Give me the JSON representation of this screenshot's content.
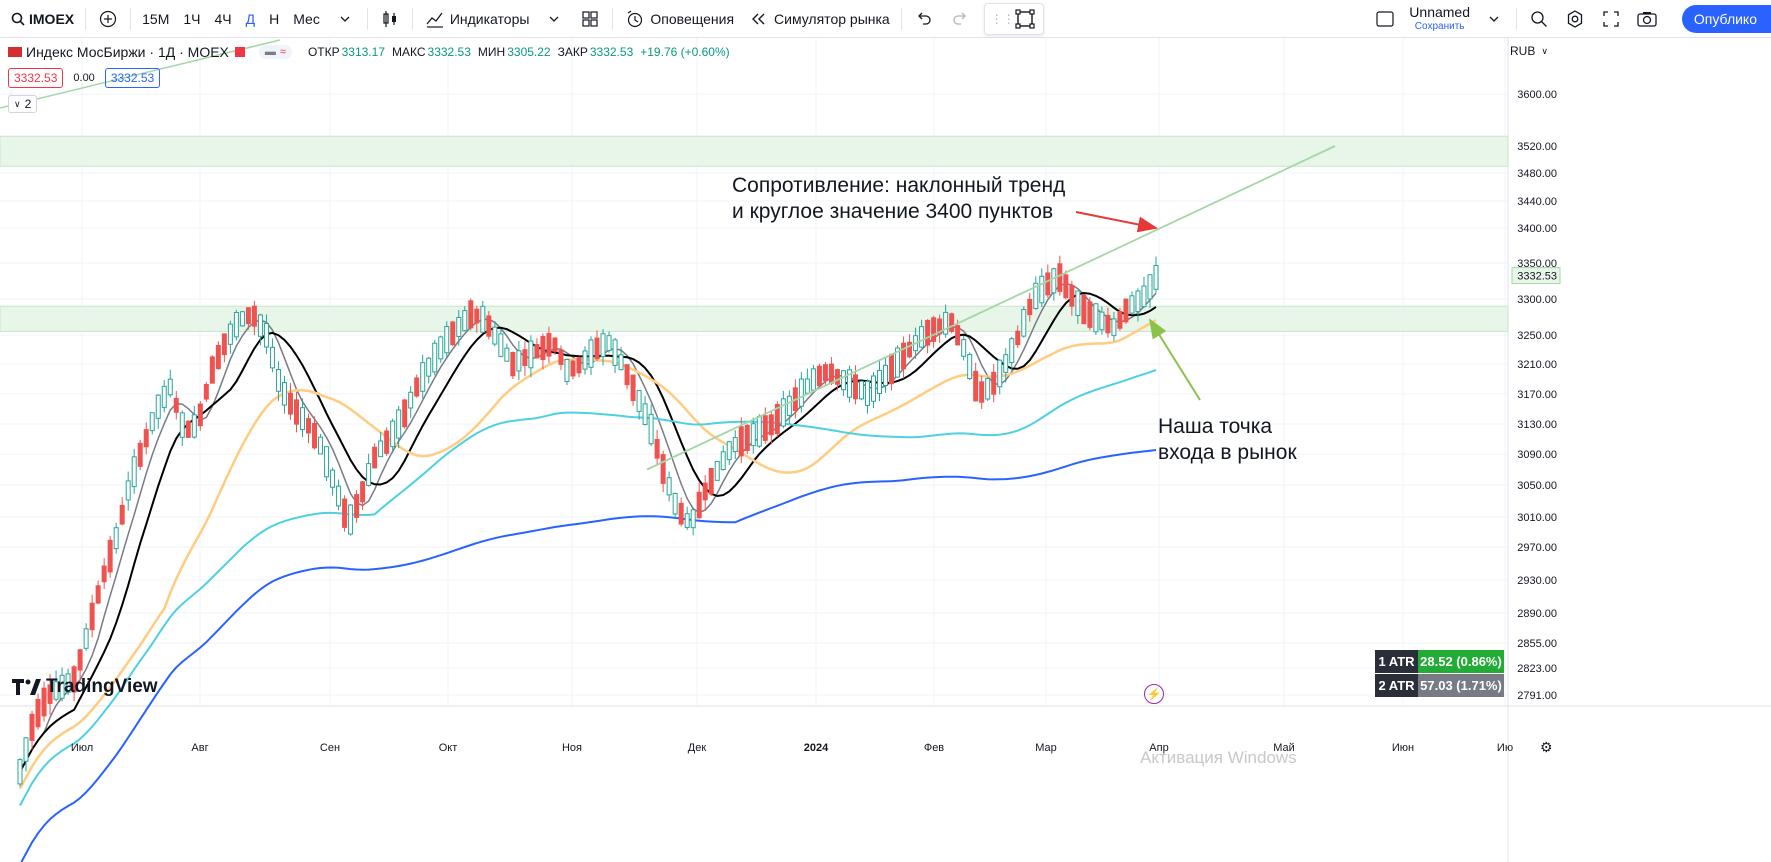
{
  "toolbar": {
    "symbol": "IMOEX",
    "intervals": [
      "15М",
      "1Ч",
      "4Ч",
      "Д",
      "Н",
      "Мес"
    ],
    "active_interval": "Д",
    "indicators_label": "Индикаторы",
    "alerts_label": "Оповещения",
    "replay_label": "Симулятор рынка",
    "layout_name": "Unnamed",
    "save_label": "Сохранить",
    "publish_label": "Опублико"
  },
  "legend": {
    "title": "Индекс МосБиржи · 1Д · MOEX",
    "open_label": "ОТКР",
    "open": "3313.17",
    "high_label": "МАКС",
    "high": "3332.53",
    "low_label": "МИН",
    "low": "3305.22",
    "close_label": "ЗАКР",
    "close": "3332.53",
    "change": "+19.76 (+0.60%)",
    "sell_price": "3332.53",
    "spread": "0.00",
    "buy_price": "3332.53",
    "collapsed_count": "2"
  },
  "currency": "RUB",
  "price_axis": {
    "ticks": [
      3600,
      3520,
      3480,
      3440,
      3400,
      3350,
      3300,
      3250,
      3210,
      3170,
      3130,
      3090,
      3050,
      3010,
      2970,
      2930,
      2890,
      2855,
      2823,
      2791
    ],
    "tick_labels": [
      "3600.00",
      "3520.00",
      "3480.00",
      "3440.00",
      "3400.00",
      "3350.00",
      "3300.00",
      "3250.00",
      "3210.00",
      "3170.00",
      "3130.00",
      "3090.00",
      "3050.00",
      "3010.00",
      "2970.00",
      "2930.00",
      "2890.00",
      "2855.00",
      "2823.00",
      "2791.00"
    ],
    "last_price_label": "3332.53"
  },
  "time_axis": {
    "labels": [
      "Июл",
      "Авг",
      "Сен",
      "Окт",
      "Ноя",
      "Дек",
      "2024",
      "Фев",
      "Мар",
      "Апр",
      "Май",
      "Июн",
      "Ию"
    ]
  },
  "atr": [
    {
      "label": "1 ATR",
      "value": "28.52 (0.86%)"
    },
    {
      "label": "2 ATR",
      "value": "57.03 (1.71%)"
    }
  ],
  "annotations": {
    "resistance_line1": "Сопротивление: наклонный тренд",
    "resistance_line2": "и круглое значение 3400 пунктов",
    "entry_line1": "Наша точка",
    "entry_line2": "входа в рынок"
  },
  "branding": {
    "logo": "TradingView"
  },
  "watermark": "Активация Windows",
  "colors": {
    "up": "#26a69a",
    "down": "#ef5350",
    "ma_gray": "#787b86",
    "ma_black": "#000000",
    "ma_orange": "#ffcc80",
    "ma_cyan": "#4dd0e1",
    "ma_blue": "#2962ff",
    "trendline": "#a5d6a7",
    "zone": "#e8f5e9",
    "arrow_red": "#e53935",
    "arrow_green": "#8bc34a"
  },
  "chart_data": {
    "type": "candlestick",
    "title": "Индекс МосБиржи · 1Д · MOEX",
    "ylim": [
      2780,
      3640
    ],
    "x_months": [
      "Июл",
      "Авг",
      "Сен",
      "Окт",
      "Ноя",
      "Дек",
      "2024",
      "Фев",
      "Мар",
      "Апр"
    ],
    "candles_close_path": [
      2700,
      2760,
      2790,
      2800,
      2810,
      2870,
      2930,
      2980,
      3050,
      3100,
      3150,
      3180,
      3120,
      3130,
      3200,
      3240,
      3270,
      3280,
      3250,
      3180,
      3150,
      3130,
      3100,
      3050,
      3000,
      3040,
      3090,
      3110,
      3140,
      3180,
      3210,
      3240,
      3260,
      3280,
      3270,
      3240,
      3210,
      3220,
      3230,
      3240,
      3200,
      3210,
      3230,
      3240,
      3210,
      3170,
      3130,
      3070,
      3020,
      3000,
      3040,
      3070,
      3100,
      3110,
      3120,
      3130,
      3150,
      3170,
      3190,
      3200,
      3190,
      3180,
      3170,
      3190,
      3210,
      3230,
      3250,
      3260,
      3270,
      3230,
      3170,
      3180,
      3210,
      3250,
      3300,
      3320,
      3330,
      3300,
      3280,
      3270,
      3260,
      3290,
      3300,
      3330
    ],
    "zones": [
      {
        "from": 3490,
        "to": 3535
      },
      {
        "from": 3255,
        "to": 3290
      }
    ],
    "trendline": {
      "from": {
        "date": "Ноя",
        "price": 3070
      },
      "to": {
        "date": "Апр",
        "price": 3520
      }
    },
    "moving_averages": [
      {
        "name": "MA gray",
        "color": "#787b86"
      },
      {
        "name": "MA black",
        "color": "#000000"
      },
      {
        "name": "MA orange",
        "color": "#ffcc80"
      },
      {
        "name": "MA cyan",
        "color": "#4dd0e1"
      },
      {
        "name": "MA blue",
        "color": "#2962ff"
      }
    ]
  }
}
